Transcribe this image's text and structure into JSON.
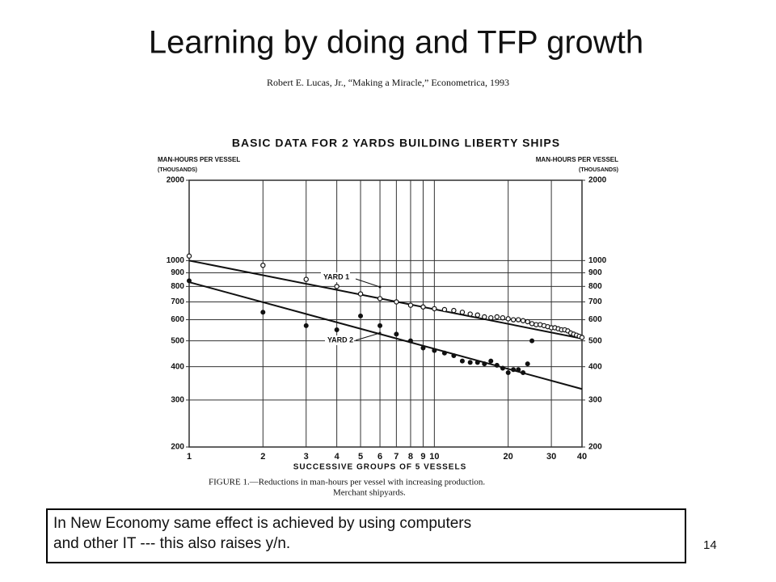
{
  "slide": {
    "title": "Learning by doing and TFP growth",
    "citation": "Robert E. Lucas, Jr., “Making a Miracle,” Econometrica, 1993",
    "caption": [
      "FIGURE 1.—Reductions in man-hours per vessel with increasing production.",
      "Merchant shipyards."
    ],
    "note": [
      "In New Economy same effect is achieved by using computers",
      "and other IT --- this also raises y/n."
    ],
    "page_number": "14"
  },
  "chart_data": {
    "type": "scatter",
    "title": "BASIC DATA FOR 2 YARDS BUILDING LIBERTY SHIPS",
    "y_label": [
      "MAN-HOURS PER VESSEL",
      "(THOUSANDS)"
    ],
    "y2_label": [
      "MAN-HOURS PER VESSEL",
      "(THOUSANDS)"
    ],
    "x_label": "SUCCESSIVE GROUPS OF 5 VESSELS",
    "log_x": true,
    "log_y": true,
    "grid": true,
    "color": "#111111",
    "xlim": [
      1,
      40
    ],
    "xticks": [
      1,
      2,
      3,
      4,
      5,
      6,
      7,
      8,
      9,
      10,
      20,
      30,
      40
    ],
    "ylim": [
      200,
      2000
    ],
    "yticks": [
      200,
      300,
      400,
      500,
      600,
      700,
      800,
      900,
      1000,
      2000
    ],
    "y2lim": [
      200,
      2000
    ],
    "y2ticks": [
      200,
      300,
      400,
      500,
      600,
      700,
      800,
      900,
      1000,
      2000
    ],
    "series": [
      {
        "name": "YARD 1",
        "marker": "open",
        "x": [
          1,
          2,
          3,
          4,
          5,
          6,
          7,
          8,
          9,
          10,
          11,
          12,
          13,
          14,
          15,
          16,
          17,
          18,
          19,
          20,
          21,
          22,
          23,
          24,
          25,
          26,
          27,
          28,
          29,
          30,
          31,
          32,
          33,
          34,
          35,
          36,
          37,
          38,
          39,
          40
        ],
        "values": [
          1040,
          960,
          850,
          800,
          750,
          720,
          700,
          680,
          670,
          660,
          655,
          650,
          640,
          630,
          625,
          615,
          610,
          615,
          610,
          605,
          600,
          600,
          595,
          590,
          580,
          575,
          575,
          570,
          565,
          560,
          560,
          555,
          550,
          550,
          545,
          535,
          530,
          525,
          520,
          515
        ]
      },
      {
        "name": "YARD 2",
        "marker": "filled",
        "x": [
          1,
          2,
          3,
          4,
          5,
          6,
          7,
          8,
          9,
          10,
          11,
          12,
          13,
          14,
          15,
          16,
          17,
          18,
          19,
          20,
          21,
          22,
          23,
          24,
          25
        ],
        "values": [
          840,
          640,
          570,
          550,
          620,
          570,
          530,
          500,
          470,
          460,
          450,
          440,
          420,
          415,
          415,
          410,
          420,
          405,
          395,
          380,
          390,
          390,
          380,
          410,
          500
        ]
      }
    ],
    "trend_lines": [
      {
        "x": [
          1,
          40
        ],
        "values": [
          1000,
          510
        ]
      },
      {
        "x": [
          1,
          40
        ],
        "values": [
          830,
          330
        ]
      }
    ]
  }
}
